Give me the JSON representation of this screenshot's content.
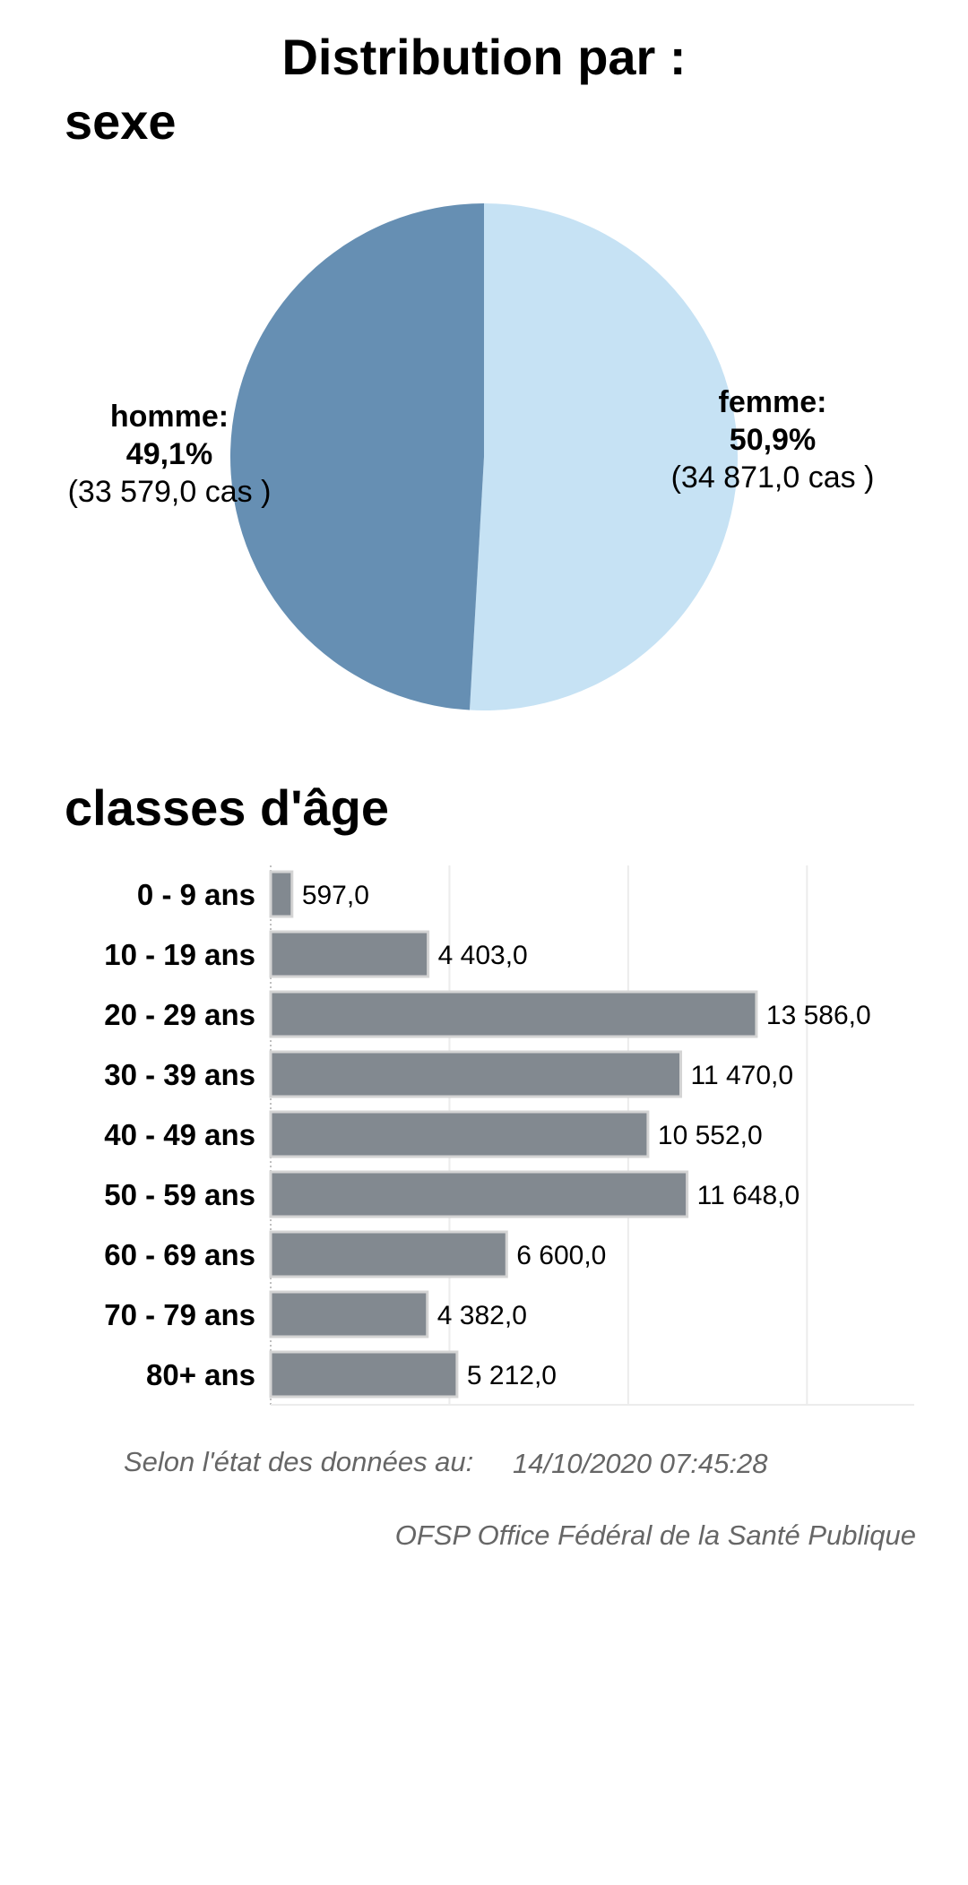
{
  "title": "Distribution par :",
  "colors": {
    "homme": "#668fb3",
    "femme": "#c6e2f4",
    "bar": "#828990",
    "bar_border": "#d4d4d4",
    "grid": "#ececec",
    "footer": "#666666"
  },
  "chart_data": [
    {
      "type": "pie",
      "title": "sexe",
      "slices": [
        {
          "name": "femme",
          "label": "femme:",
          "percent": 50.9,
          "percent_label": "50,9%",
          "cases": 34871.0,
          "cases_label": "(34 871,0 cas )"
        },
        {
          "name": "homme",
          "label": "homme:",
          "percent": 49.1,
          "percent_label": "49,1%",
          "cases": 33579.0,
          "cases_label": "(33 579,0 cas )"
        }
      ]
    },
    {
      "type": "bar",
      "orientation": "horizontal",
      "title": "classes d'âge",
      "xlim": [
        0,
        18000
      ],
      "grid_step": 5000,
      "categories": [
        "0 - 9 ans",
        "10 - 19 ans",
        "20 - 29 ans",
        "30 - 39 ans",
        "40 - 49 ans",
        "50 - 59 ans",
        "60 - 69 ans",
        "70 - 79 ans",
        "80+ ans"
      ],
      "values": [
        597.0,
        4403.0,
        13586.0,
        11470.0,
        10552.0,
        11648.0,
        6600.0,
        4382.0,
        5212.0
      ],
      "value_labels": [
        "597,0",
        "4 403,0",
        "13 586,0",
        "11 470,0",
        "10 552,0",
        "11 648,0",
        "6 600,0",
        "4 382,0",
        "5 212,0"
      ]
    }
  ],
  "footer": {
    "state_label": "Selon l'état des données au:",
    "state_date": "14/10/2020 07:45:28",
    "source": "OFSP Office Fédéral de la Santé Publique"
  }
}
